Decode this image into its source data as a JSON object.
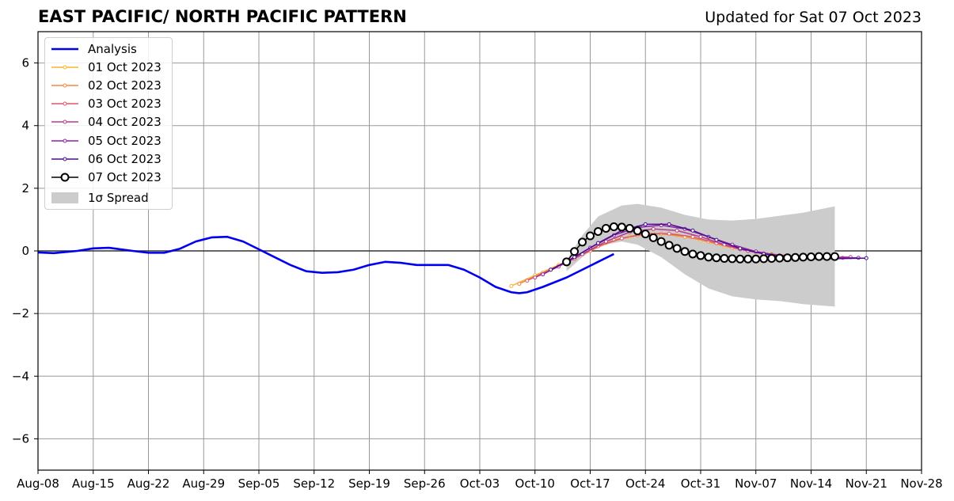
{
  "header": {
    "title": "EAST PACIFIC/ NORTH PACIFIC PATTERN",
    "updated": "Updated for Sat 07 Oct 2023"
  },
  "chart_data": {
    "type": "line",
    "grid": true,
    "legend_position": "top-left",
    "ylim": [
      -7,
      7
    ],
    "yticks": [
      -6,
      -4,
      -2,
      0,
      2,
      4,
      6
    ],
    "ytick_labels": [
      "−6",
      "−4",
      "−2",
      "0",
      "2",
      "4",
      "6"
    ],
    "xlim": [
      "2023-08-08",
      "2023-11-28"
    ],
    "xticks": [
      "2023-08-08",
      "2023-08-15",
      "2023-08-22",
      "2023-08-29",
      "2023-09-05",
      "2023-09-12",
      "2023-09-19",
      "2023-09-26",
      "2023-10-03",
      "2023-10-10",
      "2023-10-17",
      "2023-10-24",
      "2023-10-31",
      "2023-11-07",
      "2023-11-14",
      "2023-11-21",
      "2023-11-28"
    ],
    "xtick_labels": [
      "Aug-08",
      "Aug-15",
      "Aug-22",
      "Aug-29",
      "Sep-05",
      "Sep-12",
      "Sep-19",
      "Sep-26",
      "Oct-03",
      "Oct-10",
      "Oct-17",
      "Oct-24",
      "Oct-31",
      "Nov-07",
      "Nov-14",
      "Nov-21",
      "Nov-28"
    ],
    "analysis": {
      "name": "Analysis",
      "color": "#0000ee",
      "points": [
        [
          "2023-08-08",
          -0.05
        ],
        [
          "2023-08-10",
          -0.07
        ],
        [
          "2023-08-13",
          0.0
        ],
        [
          "2023-08-15",
          0.08
        ],
        [
          "2023-08-17",
          0.1
        ],
        [
          "2023-08-20",
          0.0
        ],
        [
          "2023-08-22",
          -0.06
        ],
        [
          "2023-08-24",
          -0.06
        ],
        [
          "2023-08-26",
          0.07
        ],
        [
          "2023-08-28",
          0.3
        ],
        [
          "2023-08-30",
          0.43
        ],
        [
          "2023-09-01",
          0.45
        ],
        [
          "2023-09-03",
          0.3
        ],
        [
          "2023-09-05",
          0.05
        ],
        [
          "2023-09-07",
          -0.2
        ],
        [
          "2023-09-09",
          -0.45
        ],
        [
          "2023-09-11",
          -0.65
        ],
        [
          "2023-09-13",
          -0.7
        ],
        [
          "2023-09-15",
          -0.68
        ],
        [
          "2023-09-17",
          -0.6
        ],
        [
          "2023-09-19",
          -0.45
        ],
        [
          "2023-09-21",
          -0.35
        ],
        [
          "2023-09-23",
          -0.38
        ],
        [
          "2023-09-25",
          -0.45
        ],
        [
          "2023-09-27",
          -0.45
        ],
        [
          "2023-09-29",
          -0.45
        ],
        [
          "2023-10-01",
          -0.6
        ],
        [
          "2023-10-03",
          -0.85
        ],
        [
          "2023-10-05",
          -1.15
        ],
        [
          "2023-10-07",
          -1.32
        ],
        [
          "2023-10-08",
          -1.35
        ],
        [
          "2023-10-09",
          -1.32
        ],
        [
          "2023-10-11",
          -1.15
        ],
        [
          "2023-10-14",
          -0.85
        ],
        [
          "2023-10-16",
          -0.6
        ],
        [
          "2023-10-18",
          -0.35
        ],
        [
          "2023-10-20",
          -0.1
        ]
      ]
    },
    "series": [
      {
        "name": "01 Oct 2023",
        "color": "#f8b62e",
        "points": [
          [
            "2023-10-07",
            -1.12
          ],
          [
            "2023-10-10",
            -0.78
          ],
          [
            "2023-10-13",
            -0.45
          ],
          [
            "2023-10-16",
            -0.1
          ],
          [
            "2023-10-19",
            0.25
          ],
          [
            "2023-10-22",
            0.45
          ],
          [
            "2023-10-25",
            0.55
          ],
          [
            "2023-10-28",
            0.5
          ],
          [
            "2023-10-31",
            0.35
          ],
          [
            "2023-11-03",
            0.15
          ],
          [
            "2023-11-06",
            0.0
          ],
          [
            "2023-11-09",
            -0.1
          ],
          [
            "2023-11-12",
            -0.2
          ],
          [
            "2023-11-16",
            -0.25
          ]
        ]
      },
      {
        "name": "02 Oct 2023",
        "color": "#f48a3c",
        "points": [
          [
            "2023-10-08",
            -1.05
          ],
          [
            "2023-10-11",
            -0.7
          ],
          [
            "2023-10-14",
            -0.35
          ],
          [
            "2023-10-17",
            0.0
          ],
          [
            "2023-10-20",
            0.35
          ],
          [
            "2023-10-23",
            0.5
          ],
          [
            "2023-10-26",
            0.55
          ],
          [
            "2023-10-29",
            0.45
          ],
          [
            "2023-11-01",
            0.3
          ],
          [
            "2023-11-04",
            0.1
          ],
          [
            "2023-11-07",
            -0.05
          ],
          [
            "2023-11-10",
            -0.15
          ],
          [
            "2023-11-13",
            -0.2
          ],
          [
            "2023-11-17",
            -0.25
          ]
        ]
      },
      {
        "name": "03 Oct 2023",
        "color": "#e15767",
        "points": [
          [
            "2023-10-09",
            -0.95
          ],
          [
            "2023-10-12",
            -0.6
          ],
          [
            "2023-10-15",
            -0.25
          ],
          [
            "2023-10-18",
            0.15
          ],
          [
            "2023-10-21",
            0.4
          ],
          [
            "2023-10-24",
            0.55
          ],
          [
            "2023-10-27",
            0.55
          ],
          [
            "2023-10-30",
            0.45
          ],
          [
            "2023-11-02",
            0.25
          ],
          [
            "2023-11-05",
            0.05
          ],
          [
            "2023-11-08",
            -0.08
          ],
          [
            "2023-11-11",
            -0.15
          ],
          [
            "2023-11-14",
            -0.2
          ],
          [
            "2023-11-18",
            -0.22
          ]
        ]
      },
      {
        "name": "04 Oct 2023",
        "color": "#b53d8f",
        "points": [
          [
            "2023-10-10",
            -0.85
          ],
          [
            "2023-10-13",
            -0.5
          ],
          [
            "2023-10-16",
            -0.1
          ],
          [
            "2023-10-19",
            0.3
          ],
          [
            "2023-10-22",
            0.6
          ],
          [
            "2023-10-25",
            0.7
          ],
          [
            "2023-10-28",
            0.65
          ],
          [
            "2023-10-31",
            0.45
          ],
          [
            "2023-11-03",
            0.2
          ],
          [
            "2023-11-06",
            0.0
          ],
          [
            "2023-11-09",
            -0.12
          ],
          [
            "2023-11-12",
            -0.18
          ],
          [
            "2023-11-15",
            -0.2
          ],
          [
            "2023-11-19",
            -0.2
          ]
        ]
      },
      {
        "name": "05 Oct 2023",
        "color": "#8e1fa8",
        "points": [
          [
            "2023-10-11",
            -0.75
          ],
          [
            "2023-10-14",
            -0.35
          ],
          [
            "2023-10-17",
            0.1
          ],
          [
            "2023-10-20",
            0.5
          ],
          [
            "2023-10-23",
            0.75
          ],
          [
            "2023-10-26",
            0.82
          ],
          [
            "2023-10-29",
            0.7
          ],
          [
            "2023-11-01",
            0.45
          ],
          [
            "2023-11-04",
            0.2
          ],
          [
            "2023-11-07",
            -0.02
          ],
          [
            "2023-11-10",
            -0.15
          ],
          [
            "2023-11-13",
            -0.2
          ],
          [
            "2023-11-16",
            -0.22
          ],
          [
            "2023-11-20",
            -0.22
          ]
        ]
      },
      {
        "name": "06 Oct 2023",
        "color": "#4b0c8f",
        "points": [
          [
            "2023-10-12",
            -0.6
          ],
          [
            "2023-10-15",
            -0.2
          ],
          [
            "2023-10-18",
            0.25
          ],
          [
            "2023-10-21",
            0.65
          ],
          [
            "2023-10-24",
            0.85
          ],
          [
            "2023-10-27",
            0.85
          ],
          [
            "2023-10-30",
            0.65
          ],
          [
            "2023-11-02",
            0.35
          ],
          [
            "2023-11-05",
            0.08
          ],
          [
            "2023-11-08",
            -0.1
          ],
          [
            "2023-11-11",
            -0.2
          ],
          [
            "2023-11-14",
            -0.25
          ],
          [
            "2023-11-17",
            -0.25
          ],
          [
            "2023-11-21",
            -0.23
          ]
        ]
      },
      {
        "name": "07 Oct 2023",
        "color": "#000000",
        "points": [
          [
            "2023-10-14",
            -0.35
          ],
          [
            "2023-10-15",
            -0.02
          ],
          [
            "2023-10-16",
            0.28
          ],
          [
            "2023-10-17",
            0.48
          ],
          [
            "2023-10-18",
            0.62
          ],
          [
            "2023-10-19",
            0.72
          ],
          [
            "2023-10-20",
            0.77
          ],
          [
            "2023-10-21",
            0.76
          ],
          [
            "2023-10-22",
            0.72
          ],
          [
            "2023-10-23",
            0.64
          ],
          [
            "2023-10-24",
            0.54
          ],
          [
            "2023-10-25",
            0.42
          ],
          [
            "2023-10-26",
            0.3
          ],
          [
            "2023-10-27",
            0.18
          ],
          [
            "2023-10-28",
            0.08
          ],
          [
            "2023-10-29",
            -0.02
          ],
          [
            "2023-10-30",
            -0.1
          ],
          [
            "2023-10-31",
            -0.15
          ],
          [
            "2023-11-01",
            -0.2
          ],
          [
            "2023-11-02",
            -0.22
          ],
          [
            "2023-11-03",
            -0.24
          ],
          [
            "2023-11-04",
            -0.25
          ],
          [
            "2023-11-05",
            -0.26
          ],
          [
            "2023-11-06",
            -0.26
          ],
          [
            "2023-11-07",
            -0.26
          ],
          [
            "2023-11-08",
            -0.25
          ],
          [
            "2023-11-09",
            -0.24
          ],
          [
            "2023-11-10",
            -0.23
          ],
          [
            "2023-11-11",
            -0.22
          ],
          [
            "2023-11-12",
            -0.21
          ],
          [
            "2023-11-13",
            -0.2
          ],
          [
            "2023-11-14",
            -0.19
          ],
          [
            "2023-11-15",
            -0.18
          ],
          [
            "2023-11-16",
            -0.18
          ],
          [
            "2023-11-17",
            -0.18
          ]
        ]
      }
    ],
    "spread": {
      "name": "1σ Spread",
      "color": "#cccccc",
      "upper": [
        [
          "2023-10-14",
          -0.3
        ],
        [
          "2023-10-16",
          0.5
        ],
        [
          "2023-10-18",
          1.1
        ],
        [
          "2023-10-21",
          1.45
        ],
        [
          "2023-10-23",
          1.5
        ],
        [
          "2023-10-26",
          1.38
        ],
        [
          "2023-10-29",
          1.15
        ],
        [
          "2023-11-01",
          1.0
        ],
        [
          "2023-11-04",
          0.97
        ],
        [
          "2023-11-07",
          1.02
        ],
        [
          "2023-11-10",
          1.12
        ],
        [
          "2023-11-13",
          1.22
        ],
        [
          "2023-11-17",
          1.42
        ]
      ],
      "lower": [
        [
          "2023-10-14",
          -0.65
        ],
        [
          "2023-10-16",
          -0.2
        ],
        [
          "2023-10-18",
          0.15
        ],
        [
          "2023-10-21",
          0.3
        ],
        [
          "2023-10-23",
          0.2
        ],
        [
          "2023-10-26",
          -0.2
        ],
        [
          "2023-10-29",
          -0.75
        ],
        [
          "2023-11-01",
          -1.2
        ],
        [
          "2023-11-04",
          -1.45
        ],
        [
          "2023-11-07",
          -1.55
        ],
        [
          "2023-11-10",
          -1.6
        ],
        [
          "2023-11-13",
          -1.7
        ],
        [
          "2023-11-17",
          -1.78
        ]
      ]
    }
  }
}
